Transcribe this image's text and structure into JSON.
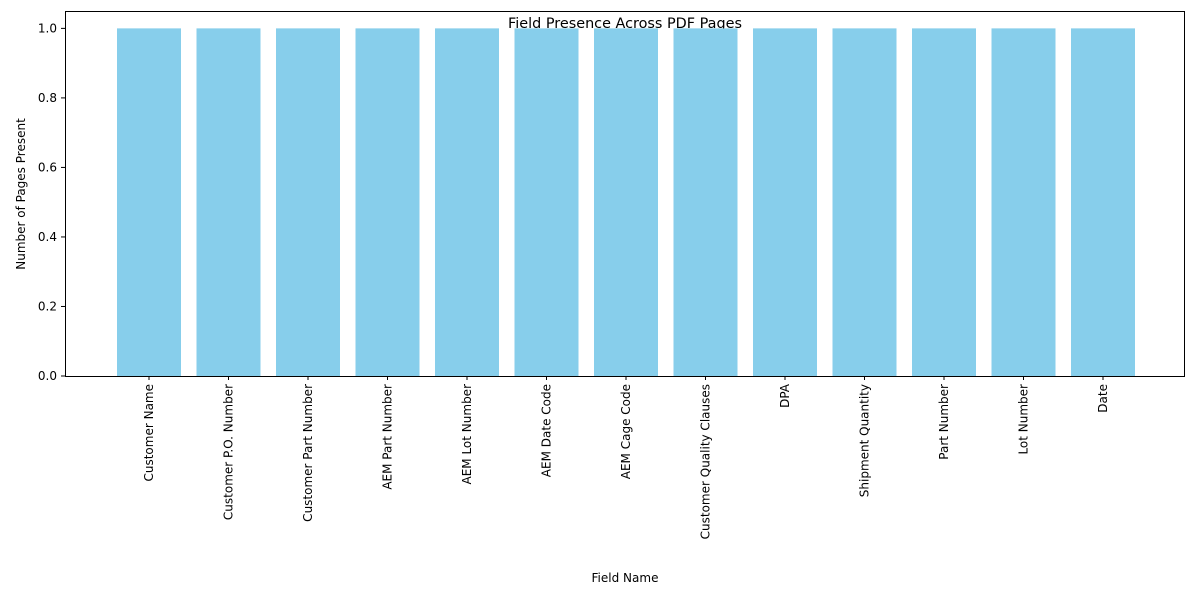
{
  "chart_data": {
    "type": "bar",
    "title": "Field Presence Across PDF Pages",
    "xlabel": "Field Name",
    "ylabel": "Number of Pages Present",
    "categories": [
      "Customer Name",
      "Customer P.O. Number",
      "Customer Part Number",
      "AEM Part Number",
      "AEM Lot Number",
      "AEM Date Code",
      "AEM Cage Code",
      "Customer Quality Clauses",
      "DPA",
      "Shipment Quantity",
      "Part Number",
      "Lot Number",
      "Date"
    ],
    "values": [
      1,
      1,
      1,
      1,
      1,
      1,
      1,
      1,
      1,
      1,
      1,
      1,
      1
    ],
    "ylim": [
      0,
      1.05
    ],
    "yticks": [
      "0.0",
      "0.2",
      "0.4",
      "0.6",
      "0.8",
      "1.0"
    ],
    "bar_color": "#87CEEB",
    "grid": false,
    "legend": "none"
  }
}
